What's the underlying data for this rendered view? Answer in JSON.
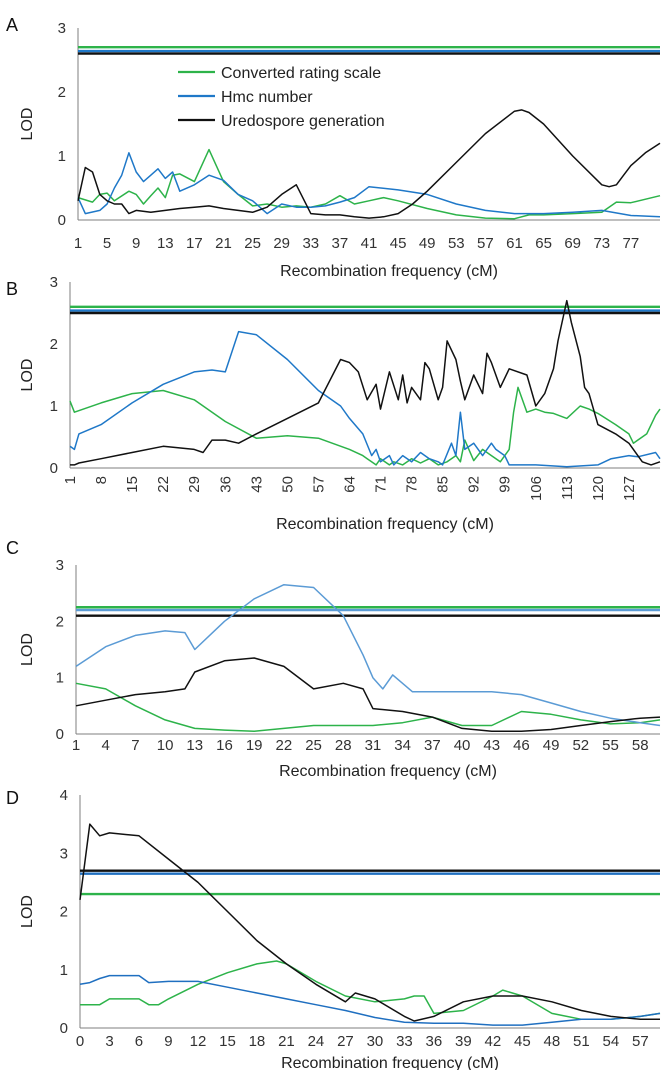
{
  "colors": {
    "converted": "#2db34a",
    "hmc_a": "#1f78c8",
    "hmc_b": "#1f78c8",
    "hmc_c": "#5b9bd5",
    "hmc_d": "#1f6fc0",
    "uredo": "#111111",
    "axis": "#7f7f7f"
  },
  "legend": {
    "converted": "Converted rating scale",
    "hmc": "Hmc number",
    "uredo": "Uredospore generation"
  },
  "chart_data": [
    {
      "type": "line",
      "panel": "A",
      "xlabel": "Recombination frequency (cM)",
      "ylabel": "LOD",
      "ylim": [
        0,
        3
      ],
      "yticks": [
        0,
        1,
        2,
        3
      ],
      "xlim": [
        1,
        81
      ],
      "xticks": [
        1,
        5,
        9,
        13,
        17,
        21,
        25,
        29,
        33,
        37,
        41,
        45,
        49,
        53,
        57,
        61,
        65,
        69,
        73,
        77
      ],
      "thresholds": [
        {
          "series": "converted",
          "value": 2.7
        },
        {
          "series": "hmc",
          "value": 2.64
        },
        {
          "series": "uredo",
          "value": 2.6
        }
      ],
      "series": [
        {
          "key": "converted",
          "name": "Converted rating scale",
          "x": [
            1,
            3,
            4,
            5,
            6,
            8,
            9,
            10,
            11,
            12,
            13,
            14,
            15,
            17,
            19,
            21,
            23,
            25,
            27,
            29,
            31,
            33,
            35,
            37,
            39,
            41,
            43,
            45,
            49,
            53,
            57,
            61,
            63,
            65,
            69,
            73,
            75,
            77,
            81
          ],
          "values": [
            0.35,
            0.28,
            0.4,
            0.42,
            0.3,
            0.45,
            0.4,
            0.25,
            0.38,
            0.5,
            0.35,
            0.7,
            0.72,
            0.6,
            1.1,
            0.6,
            0.4,
            0.22,
            0.25,
            0.2,
            0.22,
            0.2,
            0.25,
            0.38,
            0.25,
            0.3,
            0.35,
            0.3,
            0.18,
            0.08,
            0.03,
            0.02,
            0.08,
            0.08,
            0.1,
            0.12,
            0.28,
            0.27,
            0.38
          ]
        },
        {
          "key": "hmc",
          "name": "Hmc number",
          "x": [
            1,
            2,
            4,
            5,
            6,
            7,
            8,
            9,
            10,
            11,
            12,
            13,
            14,
            15,
            17,
            19,
            21,
            23,
            25,
            27,
            29,
            31,
            33,
            35,
            37,
            39,
            41,
            45,
            49,
            53,
            57,
            61,
            65,
            69,
            73,
            77,
            81
          ],
          "values": [
            0.35,
            0.1,
            0.15,
            0.25,
            0.5,
            0.7,
            1.05,
            0.75,
            0.6,
            0.7,
            0.8,
            0.65,
            0.75,
            0.45,
            0.55,
            0.7,
            0.62,
            0.4,
            0.3,
            0.1,
            0.25,
            0.2,
            0.2,
            0.22,
            0.28,
            0.35,
            0.52,
            0.47,
            0.4,
            0.25,
            0.15,
            0.1,
            0.1,
            0.12,
            0.15,
            0.07,
            0.05
          ]
        },
        {
          "key": "uredo",
          "name": "Uredospore generation",
          "x": [
            1,
            2,
            3,
            4,
            5,
            6,
            7,
            8,
            9,
            11,
            13,
            15,
            17,
            19,
            21,
            23,
            25,
            27,
            29,
            31,
            33,
            35,
            37,
            39,
            41,
            43,
            45,
            47,
            49,
            53,
            57,
            61,
            62,
            63,
            65,
            69,
            73,
            74,
            75,
            76,
            77,
            79,
            81
          ],
          "values": [
            0.3,
            0.82,
            0.75,
            0.4,
            0.3,
            0.25,
            0.25,
            0.1,
            0.15,
            0.12,
            0.15,
            0.18,
            0.2,
            0.22,
            0.18,
            0.15,
            0.12,
            0.2,
            0.4,
            0.55,
            0.1,
            0.08,
            0.08,
            0.05,
            0.03,
            0.05,
            0.1,
            0.25,
            0.45,
            0.9,
            1.35,
            1.7,
            1.72,
            1.68,
            1.5,
            1.0,
            0.55,
            0.52,
            0.55,
            0.7,
            0.85,
            1.05,
            1.2
          ]
        }
      ]
    },
    {
      "type": "line",
      "panel": "B",
      "xlabel": "Recombination frequency (cM)",
      "ylabel": "LOD",
      "ylim": [
        0,
        3
      ],
      "yticks": [
        0,
        1,
        2,
        3
      ],
      "xlim": [
        1,
        134
      ],
      "xticks": [
        1,
        8,
        15,
        22,
        29,
        36,
        43,
        50,
        57,
        64,
        71,
        78,
        85,
        92,
        99,
        106,
        113,
        120,
        127
      ],
      "thresholds": [
        {
          "series": "converted",
          "value": 2.6
        },
        {
          "series": "hmc",
          "value": 2.54
        },
        {
          "series": "uredo",
          "value": 2.5
        }
      ],
      "series": [
        {
          "key": "converted",
          "name": "Converted rating scale",
          "x": [
            1,
            2,
            8,
            15,
            22,
            29,
            36,
            43,
            50,
            57,
            64,
            67,
            68,
            70,
            71,
            73,
            74,
            76,
            78,
            80,
            82,
            84,
            86,
            88,
            89,
            90,
            92,
            94,
            96,
            98,
            100,
            101,
            102,
            104,
            106,
            108,
            110,
            113,
            116,
            118,
            120,
            124,
            127,
            128,
            131,
            133,
            134
          ],
          "values": [
            1.08,
            0.9,
            1.05,
            1.2,
            1.25,
            1.1,
            0.75,
            0.48,
            0.52,
            0.48,
            0.3,
            0.2,
            0.15,
            0.05,
            0.15,
            0.05,
            0.1,
            0.05,
            0.15,
            0.08,
            0.15,
            0.05,
            0.1,
            0.2,
            0.1,
            0.45,
            0.12,
            0.3,
            0.2,
            0.1,
            0.3,
            0.9,
            1.3,
            0.9,
            0.95,
            0.9,
            0.88,
            0.8,
            1.0,
            0.95,
            0.88,
            0.7,
            0.55,
            0.4,
            0.55,
            0.85,
            0.95
          ]
        },
        {
          "key": "hmc",
          "name": "Hmc number",
          "x": [
            1,
            2,
            3,
            8,
            15,
            22,
            29,
            33,
            36,
            39,
            43,
            50,
            57,
            62,
            64,
            67,
            69,
            70,
            71,
            73,
            74,
            76,
            78,
            80,
            82,
            84,
            85,
            87,
            88,
            89,
            90,
            92,
            94,
            96,
            97,
            99,
            100,
            106,
            113,
            120,
            123,
            127,
            129,
            133,
            134
          ],
          "values": [
            0.35,
            0.3,
            0.55,
            0.7,
            1.05,
            1.35,
            1.55,
            1.58,
            1.55,
            2.2,
            2.15,
            1.75,
            1.25,
            1.0,
            0.8,
            0.55,
            0.2,
            0.3,
            0.1,
            0.2,
            0.05,
            0.2,
            0.1,
            0.25,
            0.15,
            0.1,
            0.05,
            0.4,
            0.2,
            0.9,
            0.3,
            0.4,
            0.2,
            0.4,
            0.3,
            0.2,
            0.05,
            0.05,
            0.02,
            0.05,
            0.15,
            0.2,
            0.18,
            0.25,
            0.15
          ]
        },
        {
          "key": "uredo",
          "name": "Uredospore generation",
          "x": [
            1,
            2,
            3,
            8,
            15,
            22,
            29,
            31,
            33,
            36,
            39,
            43,
            50,
            57,
            62,
            64,
            66,
            68,
            70,
            71,
            73,
            75,
            76,
            77,
            78,
            80,
            81,
            82,
            84,
            85,
            86,
            88,
            89,
            90,
            92,
            94,
            95,
            96,
            98,
            100,
            104,
            106,
            108,
            110,
            111,
            113,
            114,
            116,
            117,
            118,
            120,
            124,
            127,
            130,
            132,
            134
          ],
          "values": [
            0.05,
            0.05,
            0.08,
            0.15,
            0.25,
            0.35,
            0.3,
            0.25,
            0.45,
            0.45,
            0.4,
            0.55,
            0.8,
            1.05,
            1.75,
            1.7,
            1.55,
            1.1,
            1.35,
            0.95,
            1.55,
            1.1,
            1.5,
            1.05,
            1.3,
            1.1,
            1.7,
            1.6,
            1.1,
            1.3,
            2.05,
            1.75,
            1.4,
            1.1,
            1.5,
            1.2,
            1.85,
            1.7,
            1.3,
            1.6,
            1.5,
            1.0,
            1.2,
            1.6,
            2.05,
            2.7,
            2.35,
            1.8,
            1.3,
            1.2,
            0.7,
            0.55,
            0.4,
            0.1,
            0.05,
            0.1
          ]
        }
      ]
    },
    {
      "type": "line",
      "panel": "C",
      "xlabel": "Recombination frequency (cM)",
      "ylabel": "LOD",
      "ylim": [
        0,
        3
      ],
      "yticks": [
        0,
        1,
        2,
        3
      ],
      "xlim": [
        1,
        60
      ],
      "xticks": [
        1,
        4,
        7,
        10,
        13,
        16,
        19,
        22,
        25,
        28,
        31,
        34,
        37,
        40,
        43,
        46,
        49,
        52,
        55,
        58
      ],
      "thresholds": [
        {
          "series": "converted",
          "value": 2.25
        },
        {
          "series": "hmc",
          "value": 2.2
        },
        {
          "series": "uredo",
          "value": 2.1
        }
      ],
      "series": [
        {
          "key": "converted",
          "name": "Converted rating scale",
          "x": [
            1,
            4,
            7,
            10,
            13,
            16,
            19,
            22,
            25,
            28,
            31,
            34,
            37,
            40,
            43,
            46,
            49,
            52,
            55,
            58,
            60
          ],
          "values": [
            0.9,
            0.8,
            0.5,
            0.25,
            0.1,
            0.07,
            0.05,
            0.1,
            0.15,
            0.15,
            0.15,
            0.2,
            0.3,
            0.15,
            0.15,
            0.4,
            0.35,
            0.25,
            0.18,
            0.2,
            0.25
          ]
        },
        {
          "key": "hmc",
          "name": "Hmc number",
          "x": [
            1,
            4,
            7,
            10,
            12,
            13,
            16,
            19,
            22,
            25,
            28,
            30,
            31,
            32,
            33,
            35,
            37,
            40,
            43,
            46,
            49,
            52,
            55,
            58,
            60
          ],
          "values": [
            1.2,
            1.55,
            1.75,
            1.83,
            1.8,
            1.5,
            2.0,
            2.4,
            2.65,
            2.6,
            2.1,
            1.4,
            1.0,
            0.8,
            1.05,
            0.75,
            0.75,
            0.75,
            0.75,
            0.7,
            0.55,
            0.4,
            0.28,
            0.2,
            0.15
          ]
        },
        {
          "key": "uredo",
          "name": "Uredospore generation",
          "x": [
            1,
            4,
            7,
            10,
            12,
            13,
            16,
            19,
            22,
            25,
            28,
            30,
            31,
            34,
            37,
            40,
            43,
            46,
            49,
            52,
            55,
            58,
            60
          ],
          "values": [
            0.5,
            0.6,
            0.7,
            0.75,
            0.8,
            1.1,
            1.3,
            1.35,
            1.2,
            0.8,
            0.9,
            0.8,
            0.45,
            0.4,
            0.3,
            0.1,
            0.05,
            0.05,
            0.08,
            0.15,
            0.22,
            0.28,
            0.3
          ]
        }
      ]
    },
    {
      "type": "line",
      "panel": "D",
      "xlabel": "Recombination frequency (cM)",
      "ylabel": "LOD",
      "ylim": [
        0,
        4
      ],
      "yticks": [
        0,
        1,
        2,
        3,
        4
      ],
      "xlim": [
        0,
        59
      ],
      "xticks": [
        0,
        3,
        6,
        9,
        12,
        15,
        18,
        21,
        24,
        27,
        30,
        33,
        36,
        39,
        42,
        45,
        48,
        51,
        54,
        57
      ],
      "thresholds": [
        {
          "series": "converted",
          "value": 2.3
        },
        {
          "series": "hmc",
          "value": 2.65
        },
        {
          "series": "uredo",
          "value": 2.7
        }
      ],
      "series": [
        {
          "key": "converted",
          "name": "Converted rating scale",
          "x": [
            0,
            1,
            2,
            3,
            6,
            7,
            8,
            9,
            12,
            15,
            18,
            20,
            21,
            24,
            27,
            30,
            33,
            34,
            35,
            36,
            39,
            42,
            43,
            45,
            48,
            51,
            54,
            57,
            59
          ],
          "values": [
            0.4,
            0.4,
            0.4,
            0.5,
            0.5,
            0.4,
            0.4,
            0.5,
            0.75,
            0.95,
            1.1,
            1.15,
            1.1,
            0.8,
            0.55,
            0.45,
            0.5,
            0.55,
            0.55,
            0.25,
            0.3,
            0.55,
            0.65,
            0.55,
            0.25,
            0.15,
            0.15,
            0.2,
            0.25
          ]
        },
        {
          "key": "hmc",
          "name": "Hmc number",
          "x": [
            0,
            1,
            2,
            3,
            6,
            7,
            9,
            12,
            15,
            18,
            21,
            24,
            27,
            30,
            33,
            36,
            39,
            42,
            45,
            48,
            51,
            54,
            57,
            59
          ],
          "values": [
            0.75,
            0.78,
            0.85,
            0.9,
            0.9,
            0.78,
            0.8,
            0.8,
            0.7,
            0.6,
            0.5,
            0.4,
            0.3,
            0.18,
            0.1,
            0.08,
            0.08,
            0.05,
            0.05,
            0.1,
            0.15,
            0.15,
            0.2,
            0.25
          ]
        },
        {
          "key": "uredo",
          "name": "Uredospore generation",
          "x": [
            0,
            1,
            2,
            3,
            6,
            9,
            12,
            15,
            18,
            21,
            24,
            27,
            28,
            30,
            33,
            34,
            36,
            39,
            42,
            45,
            48,
            51,
            54,
            57,
            59
          ],
          "values": [
            2.2,
            3.5,
            3.3,
            3.35,
            3.3,
            2.9,
            2.5,
            2.0,
            1.5,
            1.1,
            0.75,
            0.45,
            0.6,
            0.5,
            0.2,
            0.12,
            0.2,
            0.45,
            0.55,
            0.55,
            0.45,
            0.3,
            0.2,
            0.15,
            0.15
          ]
        }
      ]
    }
  ]
}
